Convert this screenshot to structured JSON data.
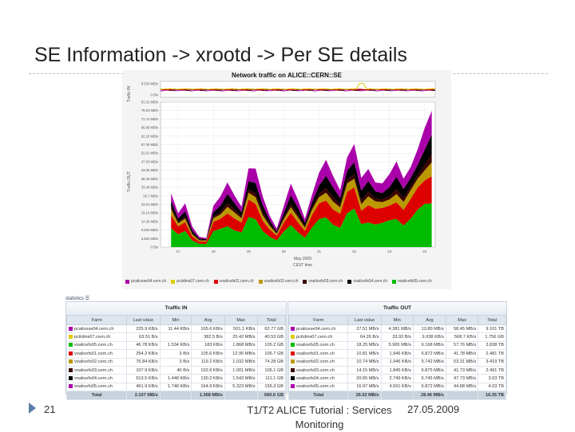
{
  "slide": {
    "title": "SE Information -> xrootd -> Per SE details",
    "page_number": "21",
    "footer_center": "T1/T2 ALICE Tutorial : Services Monitoring",
    "footer_date": "27.05.2009"
  },
  "chart_data": {
    "type": "area",
    "title": "Network traffic on ALICE::CERN::SE",
    "ylabel": "Traffic OUT",
    "top_panel_ylabel": "Traffic IN",
    "xlabel": "CEST time",
    "x_subtitle": "May 2009",
    "x_ticks": [
      "17",
      "18",
      "19",
      "20",
      "21",
      "22",
      "23",
      "24"
    ],
    "y_ticks": [
      "0 B/s",
      "6.853 MB/s",
      "9.583 MB/s",
      "14.35 MB/s",
      "19.13 MB/s",
      "23.91 MB/s",
      "28.7 MB/s",
      "33.48 MB/s",
      "38.26 MB/s",
      "43.05 MB/s",
      "47.83 MB/s",
      "52.61 MB/s",
      "57.39 MB/s",
      "62.18 MB/s",
      "66.96 MB/s",
      "71.74 MB/s",
      "76.53 MB/s",
      "81.31 MB/s"
    ],
    "top_y_ticks": [
      "8.533 MB/s",
      "0 B/s"
    ],
    "ylim": [
      0,
      81.31
    ],
    "x_range": [
      16.5,
      24.3
    ],
    "colors": [
      "#00bb00",
      "#dd0000",
      "#bb9900",
      "#3a0000",
      "#000000",
      "#aa00aa"
    ],
    "series": [
      {
        "name": "voalicefs05.cern.ch",
        "color": "#00bb00"
      },
      {
        "name": "voalicefs01.cern.ch",
        "color": "#dd0000"
      },
      {
        "name": "voalicefs02.cern.ch",
        "color": "#bb9900"
      },
      {
        "name": "voalicefs03.cern.ch",
        "color": "#3a0000"
      },
      {
        "name": "voalicefs04.cern.ch",
        "color": "#000000"
      },
      {
        "name": "pcalicese04.cern.ch",
        "color": "#aa00aa"
      }
    ],
    "envelope_x": [
      16.8,
      17.0,
      17.2,
      17.4,
      17.6,
      17.8,
      18.0,
      18.2,
      18.4,
      18.6,
      18.8,
      19.0,
      19.2,
      19.4,
      19.6,
      19.8,
      20.0,
      20.2,
      20.4,
      20.6,
      20.8,
      21.0,
      21.2,
      21.4,
      21.6,
      21.8,
      22.0,
      22.2,
      22.4,
      22.6,
      22.8,
      23.0,
      23.2,
      23.4,
      23.6,
      23.8,
      24.0,
      24.2
    ],
    "envelope_total": [
      30,
      18,
      24,
      12,
      6,
      5,
      22,
      28,
      38,
      30,
      22,
      42,
      44,
      30,
      18,
      10,
      22,
      36,
      28,
      16,
      28,
      40,
      50,
      42,
      32,
      48,
      56,
      40,
      46,
      36,
      34,
      40,
      50,
      40,
      44,
      52,
      66,
      80
    ],
    "fractions": [
      0.35,
      0.22,
      0.1,
      0.05,
      0.12,
      0.16
    ]
  },
  "legend": {
    "items": [
      {
        "label": "pcalicese04.cern.ch",
        "color": "#aa00aa"
      },
      {
        "label": "pcitdms07.cern.ch",
        "color": "#ddcc00"
      },
      {
        "label": "voalicefs01.cern.ch",
        "color": "#dd0000"
      },
      {
        "label": "voalicefs02.cern.ch",
        "color": "#bb9900"
      },
      {
        "label": "voalicefs03.cern.ch",
        "color": "#3a0000"
      },
      {
        "label": "voalicefs04.cern.ch",
        "color": "#000000"
      },
      {
        "label": "voalicefs05.cern.ch",
        "color": "#00bb00"
      }
    ]
  },
  "stats": {
    "label": "statistics ☰",
    "traffic_in": {
      "title": "Traffic IN",
      "columns": [
        "Farm",
        "Last value",
        "Min",
        "Avg",
        "Max",
        "Total"
      ],
      "rows": [
        {
          "color": "#aa00aa",
          "cells": [
            "pcalicese04.cern.ch",
            "225.9 KB/s",
            "11.44 KB/s",
            "105.6 KB/s",
            "501.1 KB/s",
            "62.77 GB"
          ]
        },
        {
          "color": "#ddcc00",
          "cells": [
            "pcitdms07.cern.ch",
            "63.51 B/s",
            "",
            "382.5 B/s",
            "25.42 MB/s",
            "40.53 GB"
          ]
        },
        {
          "color": "#00bb00",
          "cells": [
            "voalicefs05.cern.ch",
            "46.78 KB/s",
            "1.534 KB/s",
            "183 KB/s",
            "1.868 MB/s",
            "105.2 GB"
          ]
        },
        {
          "color": "#dd0000",
          "cells": [
            "voalicefs01.cern.ch",
            "254.2 KB/s",
            "3 B/s",
            "105.6 KB/s",
            "12.95 MB/s",
            "106.7 GB"
          ]
        },
        {
          "color": "#bb9900",
          "cells": [
            "voalicefs02.cern.ch",
            "76.84 KB/s",
            "3 B/s",
            "119.2 KB/s",
            "1.032 MB/s",
            "74.28 GB"
          ]
        },
        {
          "color": "#3a0000",
          "cells": [
            "voalicefs03.cern.ch",
            "107.9 KB/s",
            "40 B/s",
            "102.6 KB/s",
            "1.001 MB/s",
            "105.1 GB"
          ]
        },
        {
          "color": "#000000",
          "cells": [
            "voalicefs04.cern.ch",
            "513.5 KB/s",
            "1.448 KB/s",
            "130.2 KB/s",
            "1.543 MB/s",
            "111.1 GB"
          ]
        },
        {
          "color": "#aa00aa",
          "cells": [
            "voalicefs05.cern.ch",
            "461.9 KB/s",
            "1.748 KB/s",
            "164.9 KB/s",
            "5.323 MB/s",
            "155.3 GB"
          ]
        }
      ],
      "total": [
        "Total",
        "2.107 MB/s",
        "",
        "1.368 MB/s",
        "",
        "660.6 GB"
      ]
    },
    "traffic_out": {
      "title": "Traffic OUT",
      "columns": [
        "Farm",
        "Last value",
        "Min",
        "Avg",
        "Max",
        "Total"
      ],
      "rows": [
        {
          "color": "#aa00aa",
          "cells": [
            "pcalicese04.cern.ch",
            "27.51 MB/s",
            "4.381 MB/s",
            "13.80 MB/s",
            "58.45 MB/s",
            "9.101 TB"
          ]
        },
        {
          "color": "#ddcc00",
          "cells": [
            "pcitdms07.cern.ch",
            "64.26 B/s",
            "33.93 B/s",
            "9.938 KB/s",
            "568.7 KB/s",
            "1.756 GB"
          ]
        },
        {
          "color": "#00bb00",
          "cells": [
            "voalicefs05.cern.ch",
            "18.25 MB/s",
            "5.965 MB/s",
            "6.168 MB/s",
            "57.76 MB/s",
            "3.838 TB"
          ]
        },
        {
          "color": "#dd0000",
          "cells": [
            "voalicefs01.cern.ch",
            "10.81 MB/s",
            "1.946 KB/s",
            "6.872 MB/s",
            "41.78 MB/s",
            "2.481 TB"
          ]
        },
        {
          "color": "#bb9900",
          "cells": [
            "voalicefs02.cern.ch",
            "10.74 MB/s",
            "1.946 KB/s",
            "5.742 MB/s",
            "53.31 MB/s",
            "3.419 TB"
          ]
        },
        {
          "color": "#3a0000",
          "cells": [
            "voalicefs03.cern.ch",
            "14.15 MB/s",
            "1.845 KB/s",
            "6.875 MB/s",
            "41.73 MB/s",
            "2.491 TB"
          ]
        },
        {
          "color": "#000000",
          "cells": [
            "voalicefs04.cern.ch",
            "20.65 MB/s",
            "2.749 KB/s",
            "6.745 MB/s",
            "47.73 MB/s",
            "3.03 TB"
          ]
        },
        {
          "color": "#aa00aa",
          "cells": [
            "voalicefs05.cern.ch",
            "16.97 MB/s",
            "4.591 KB/s",
            "6.872 MB/s",
            "44.88 MB/s",
            "4.03 TB"
          ]
        }
      ],
      "total": [
        "Total",
        "26.02 MB/s",
        "",
        "28.46 MB/s",
        "",
        "16.35 TB"
      ]
    }
  }
}
